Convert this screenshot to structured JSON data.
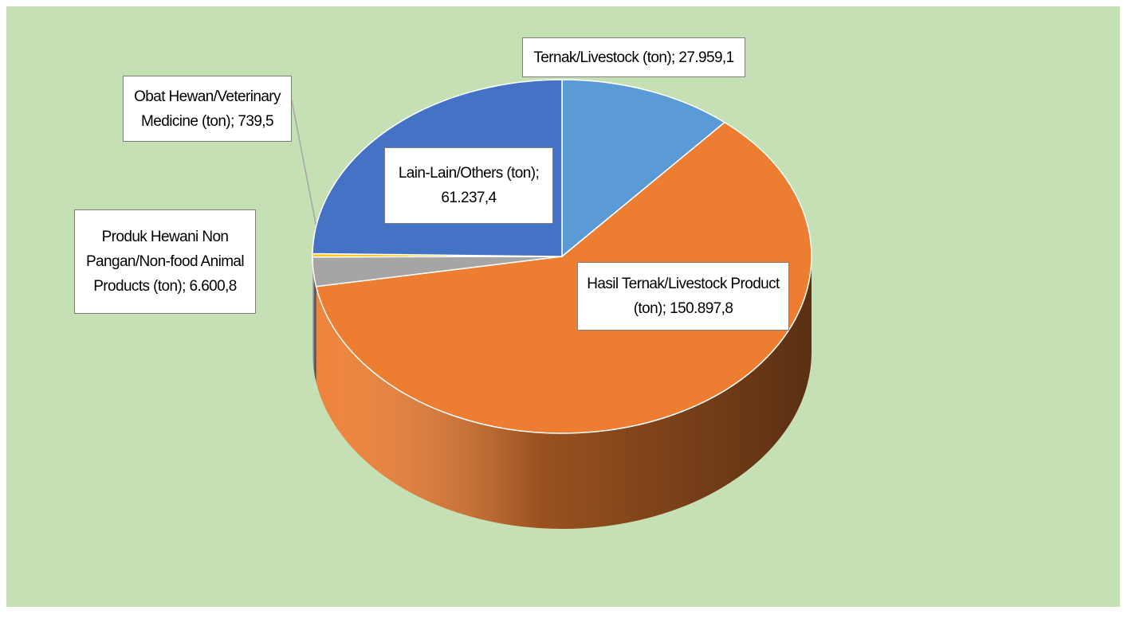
{
  "chart_data": {
    "type": "pie3d",
    "categories": [
      "Ternak/Livestock (ton)",
      "Hasil Ternak/Livestock Product (ton)",
      "Produk Hewani Non Pangan/Non-food  Animal Products  (ton)",
      "Obat Hewan/Veterinary Medicine (ton)",
      "Lain-Lain/Others (ton)"
    ],
    "values": [
      27959.1,
      150897.8,
      6600.8,
      739.5,
      61237.4
    ],
    "value_labels": [
      "27.959,1",
      "150.897,8",
      "6.600,8",
      "739,5",
      "61.237,4"
    ],
    "label_separator": ";",
    "colors": [
      "#5b9bd5",
      "#ed7d31",
      "#a5a5a5",
      "#ffc000",
      "#4472c4"
    ]
  }
}
